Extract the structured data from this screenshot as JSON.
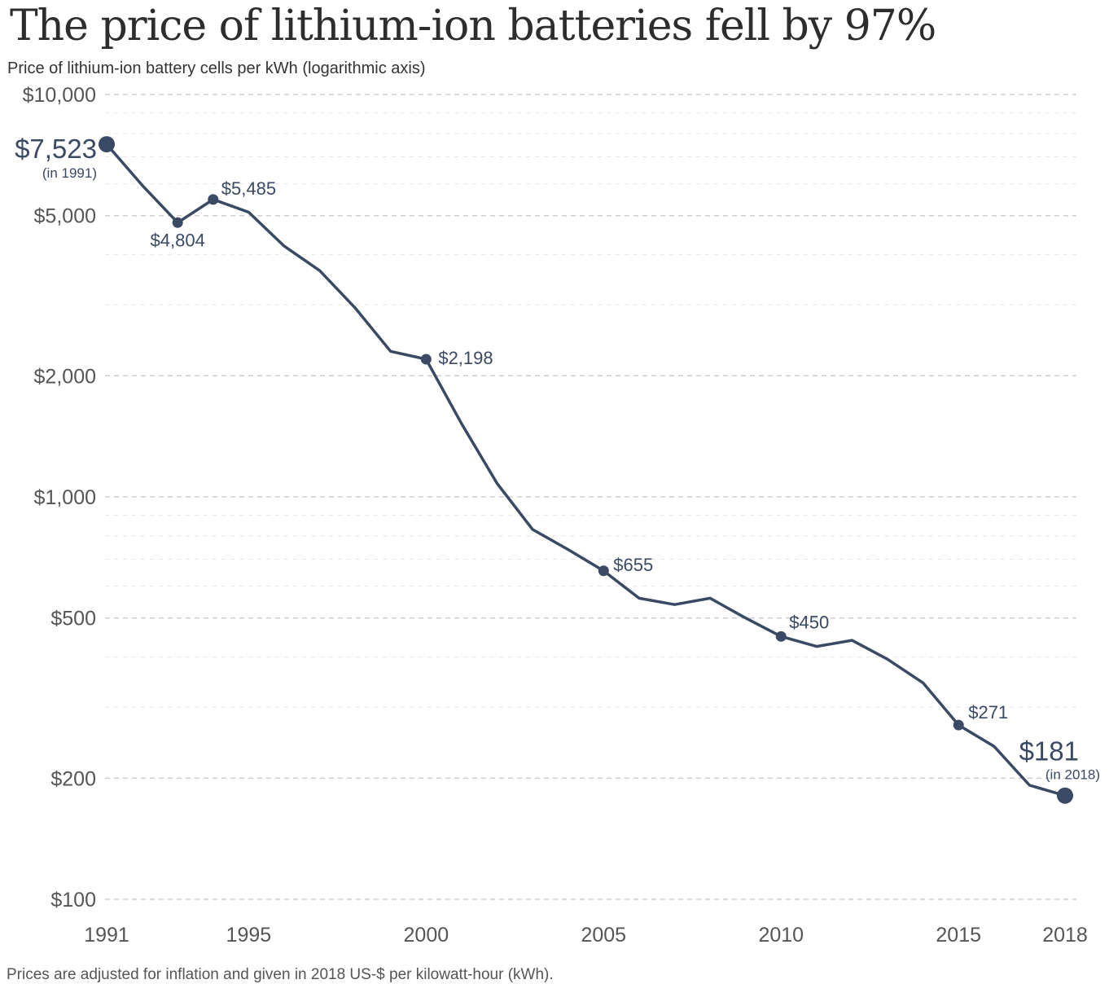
{
  "title": "The price of lithium-ion batteries fell by 97%",
  "subtitle": "Price of lithium-ion battery cells per kWh (logarithmic axis)",
  "footnote": "Prices are adjusted for inflation and given in 2018 US-$ per kilowatt-hour (kWh).",
  "colors": {
    "line": "#3a4a64",
    "grid": "#d9d9d9",
    "text": "#555555"
  },
  "chart_data": {
    "type": "line",
    "title": "The price of lithium-ion batteries fell by 97%",
    "ylabel": "Price of lithium-ion battery cells per kWh (logarithmic axis)",
    "yscale": "log",
    "ylim": [
      100,
      10000
    ],
    "xlim": [
      1991,
      2018
    ],
    "grid": true,
    "x_ticks": [
      "1991",
      "1995",
      "2000",
      "2005",
      "2010",
      "2015",
      "2018"
    ],
    "y_ticks": [
      {
        "value": 10000,
        "label": "$10,000"
      },
      {
        "value": 5000,
        "label": "$5,000"
      },
      {
        "value": 2000,
        "label": "$2,000"
      },
      {
        "value": 1000,
        "label": "$1,000"
      },
      {
        "value": 500,
        "label": "$500"
      },
      {
        "value": 200,
        "label": "$200"
      },
      {
        "value": 100,
        "label": "$100"
      }
    ],
    "series": [
      {
        "x": [
          1991,
          1992,
          1993,
          1994,
          1995,
          1996,
          1997,
          1998,
          1999,
          2000,
          2001,
          2002,
          2003,
          2004,
          2005,
          2006,
          2007,
          2008,
          2009,
          2010,
          2011,
          2012,
          2013,
          2014,
          2015,
          2016,
          2017,
          2018
        ],
        "y": [
          7523,
          5950,
          4804,
          5485,
          5100,
          4200,
          3650,
          2950,
          2300,
          2198,
          1520,
          1080,
          830,
          740,
          655,
          560,
          540,
          560,
          500,
          450,
          425,
          440,
          395,
          345,
          271,
          240,
          192,
          181
        ]
      }
    ],
    "annotations": [
      {
        "x": 1991,
        "y": 7523,
        "label": "$7,523",
        "sublabel": "(in 1991)",
        "style": "big"
      },
      {
        "x": 1993,
        "y": 4804,
        "label": "$4,804"
      },
      {
        "x": 1994,
        "y": 5485,
        "label": "$5,485"
      },
      {
        "x": 2000,
        "y": 2198,
        "label": "$2,198"
      },
      {
        "x": 2005,
        "y": 655,
        "label": "$655"
      },
      {
        "x": 2010,
        "y": 450,
        "label": "$450"
      },
      {
        "x": 2015,
        "y": 271,
        "label": "$271"
      },
      {
        "x": 2018,
        "y": 181,
        "label": "$181",
        "sublabel": "(in 2018)",
        "style": "big"
      }
    ]
  }
}
